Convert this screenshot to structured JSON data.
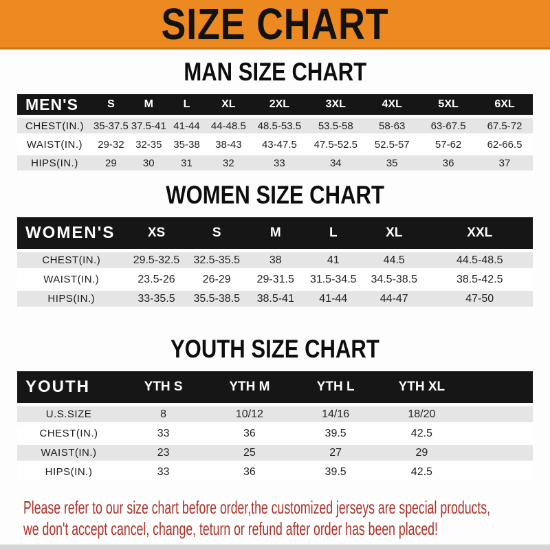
{
  "banner": {
    "title": "SIZE CHART"
  },
  "sections": [
    {
      "heading": "MAN SIZE CHART",
      "table": {
        "header_label": "MEN'S",
        "columns": [
          "S",
          "M",
          "L",
          "XL",
          "2XL",
          "3XL",
          "4XL",
          "5XL",
          "6XL"
        ],
        "rows": [
          {
            "label": "CHEST(IN.)",
            "values": [
              "35-37.5",
              "37.5-41",
              "41-44",
              "44-48.5",
              "48.5-53.5",
              "53.5-58",
              "58-63",
              "63-67.5",
              "67.5-72"
            ]
          },
          {
            "label": "WAIST(IN.)",
            "values": [
              "29-32",
              "32-35",
              "35-38",
              "38-43",
              "43-47.5",
              "47.5-52.5",
              "52.5-57",
              "57-62",
              "62-66.5"
            ]
          },
          {
            "label": "HIPS(IN.)",
            "values": [
              "29",
              "30",
              "31",
              "32",
              "33",
              "34",
              "35",
              "36",
              "37"
            ]
          }
        ]
      }
    },
    {
      "heading": "WOMEN SIZE CHART",
      "table": {
        "header_label": "WOMEN'S",
        "columns": [
          "XS",
          "S",
          "M",
          "L",
          "XL",
          "XXL"
        ],
        "rows": [
          {
            "label": "CHEST(IN.)",
            "values": [
              "29.5-32.5",
              "32.5-35.5",
              "38",
              "41",
              "44.5",
              "44.5-48.5"
            ]
          },
          {
            "label": "WAIST(IN.)",
            "values": [
              "23.5-26",
              "26-29",
              "29-31.5",
              "31.5-34.5",
              "34.5-38.5",
              "38.5-42.5"
            ]
          },
          {
            "label": "HIPS(IN.)",
            "values": [
              "33-35.5",
              "35.5-38.5",
              "38.5-41",
              "41-44",
              "44-47",
              "47-50"
            ]
          }
        ]
      }
    },
    {
      "heading": "YOUTH SIZE CHART",
      "table": {
        "header_label": "YOUTH",
        "columns": [
          "YTH S",
          "YTH M",
          "YTH L",
          "YTH XL"
        ],
        "rows": [
          {
            "label": "U.S.SIZE",
            "values": [
              "8",
              "10/12",
              "14/16",
              "18/20"
            ]
          },
          {
            "label": "CHEST(IN.)",
            "values": [
              "33",
              "36",
              "39.5",
              "42.5"
            ]
          },
          {
            "label": "WAIST(IN.)",
            "values": [
              "23",
              "25",
              "27",
              "29"
            ]
          },
          {
            "label": "HIPS(IN.)",
            "values": [
              "33",
              "36",
              "39.5",
              "42.5"
            ]
          }
        ]
      }
    }
  ],
  "disclaimer": {
    "line1": "Please refer to our size chart before order,the customized jerseys are special products,",
    "line2": "we don't accept cancel, change, teturn or refund after order has been placed!"
  },
  "colors": {
    "banner_bg": "#EC8A21",
    "banner_edge": "#C9770F",
    "header_bar_bg": "#161616",
    "row_alt_bg": "#E5E5E5",
    "disclaimer_text": "#A93229"
  }
}
